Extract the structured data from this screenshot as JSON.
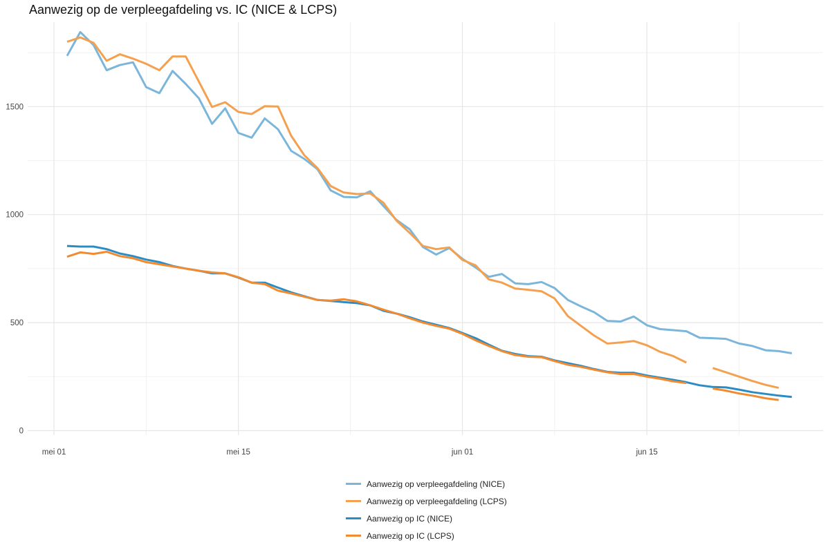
{
  "chart_data": {
    "type": "line",
    "title": "Aanwezig op de verpleegafdeling vs. IC (NICE & LCPS)",
    "xlabel": "",
    "ylabel": "",
    "ylim": [
      0,
      1900
    ],
    "xlim": [
      0,
      59
    ],
    "y_ticks": [
      0,
      500,
      1000,
      1500
    ],
    "y_tick_labels": [
      "0",
      "500",
      "1000",
      "1500"
    ],
    "x_ticks": [
      0,
      14,
      31,
      45
    ],
    "x_tick_labels": [
      "mei 01",
      "mei 15",
      "jun 01",
      "jun 15"
    ],
    "grid": true,
    "legend_position": "bottom",
    "series": [
      {
        "name": "Aanwezig op verpleegafdeling (NICE)",
        "color": "#7bb6da",
        "x": [
          1,
          2,
          3,
          4,
          5,
          6,
          7,
          8,
          9,
          10,
          11,
          12,
          13,
          14,
          15,
          16,
          17,
          18,
          19,
          20,
          21,
          22,
          23,
          24,
          25,
          26,
          27,
          28,
          29,
          30,
          31,
          32,
          33,
          34,
          35,
          36,
          37,
          38,
          39,
          40,
          41,
          42,
          43,
          44,
          45,
          46,
          47,
          48,
          49,
          50,
          51,
          52,
          53,
          54,
          55,
          56
        ],
        "values": [
          1735,
          1845,
          1785,
          1668,
          1692,
          1705,
          1590,
          1562,
          1665,
          1605,
          1538,
          1420,
          1492,
          1378,
          1356,
          1445,
          1395,
          1295,
          1258,
          1210,
          1112,
          1082,
          1080,
          1108,
          1040,
          975,
          932,
          850,
          815,
          845,
          795,
          755,
          712,
          725,
          682,
          678,
          688,
          660,
          605,
          575,
          548,
          508,
          505,
          528,
          488,
          470,
          465,
          460,
          430,
          428,
          425,
          403,
          392,
          372,
          368,
          358
        ]
      },
      {
        "name": "Aanwezig op verpleegafdeling (LCPS)",
        "color": "#f4a04e",
        "x": [
          1,
          2,
          3,
          4,
          5,
          6,
          7,
          8,
          9,
          10,
          11,
          12,
          13,
          14,
          15,
          16,
          17,
          18,
          19,
          20,
          21,
          22,
          23,
          24,
          25,
          26,
          27,
          28,
          29,
          30,
          31,
          32,
          33,
          34,
          35,
          36,
          37,
          38,
          39,
          40,
          41,
          42,
          43,
          44,
          45,
          46,
          47,
          48,
          null,
          50,
          51,
          52,
          53,
          54,
          55,
          56
        ],
        "values": [
          1800,
          1820,
          1795,
          1712,
          1742,
          1722,
          1698,
          1668,
          1732,
          1732,
          1615,
          1498,
          1520,
          1475,
          1465,
          1502,
          1500,
          1365,
          1275,
          1215,
          1132,
          1102,
          1095,
          1098,
          1055,
          972,
          915,
          855,
          840,
          848,
          790,
          765,
          700,
          685,
          658,
          652,
          645,
          612,
          530,
          485,
          440,
          403,
          408,
          415,
          395,
          365,
          345,
          315,
          null,
          290,
          270,
          250,
          230,
          212,
          198,
          null
        ]
      },
      {
        "name": "Aanwezig op IC (NICE)",
        "color": "#2b8cc4",
        "x": [
          1,
          2,
          3,
          4,
          5,
          6,
          7,
          8,
          9,
          10,
          11,
          12,
          13,
          14,
          15,
          16,
          17,
          18,
          19,
          20,
          21,
          22,
          23,
          24,
          25,
          26,
          27,
          28,
          29,
          30,
          31,
          32,
          33,
          34,
          35,
          36,
          37,
          38,
          39,
          40,
          41,
          42,
          43,
          44,
          45,
          46,
          47,
          48,
          49,
          50,
          51,
          52,
          53,
          54,
          55,
          56
        ],
        "values": [
          855,
          852,
          852,
          840,
          820,
          808,
          792,
          780,
          762,
          750,
          740,
          728,
          728,
          708,
          685,
          685,
          662,
          640,
          622,
          605,
          600,
          595,
          590,
          580,
          555,
          542,
          525,
          505,
          490,
          475,
          452,
          428,
          398,
          370,
          355,
          345,
          342,
          325,
          312,
          300,
          285,
          272,
          268,
          268,
          255,
          245,
          235,
          224,
          210,
          202,
          200,
          190,
          178,
          170,
          162,
          156
        ]
      },
      {
        "name": "Aanwezig op IC (LCPS)",
        "color": "#f28a30",
        "x": [
          1,
          2,
          3,
          4,
          5,
          6,
          7,
          8,
          9,
          10,
          11,
          12,
          13,
          14,
          15,
          16,
          17,
          18,
          19,
          20,
          21,
          22,
          23,
          24,
          25,
          26,
          27,
          28,
          29,
          30,
          31,
          32,
          33,
          34,
          35,
          36,
          37,
          38,
          39,
          40,
          41,
          42,
          43,
          44,
          45,
          46,
          47,
          48,
          null,
          50,
          51,
          52,
          53,
          54,
          55,
          56
        ],
        "values": [
          805,
          825,
          818,
          828,
          808,
          798,
          780,
          770,
          760,
          750,
          740,
          732,
          728,
          710,
          685,
          678,
          648,
          635,
          620,
          605,
          602,
          608,
          598,
          580,
          560,
          542,
          520,
          500,
          485,
          472,
          448,
          418,
          392,
          368,
          350,
          342,
          340,
          322,
          305,
          295,
          282,
          270,
          262,
          262,
          250,
          240,
          228,
          220,
          null,
          195,
          185,
          172,
          162,
          150,
          142,
          null
        ]
      }
    ]
  }
}
